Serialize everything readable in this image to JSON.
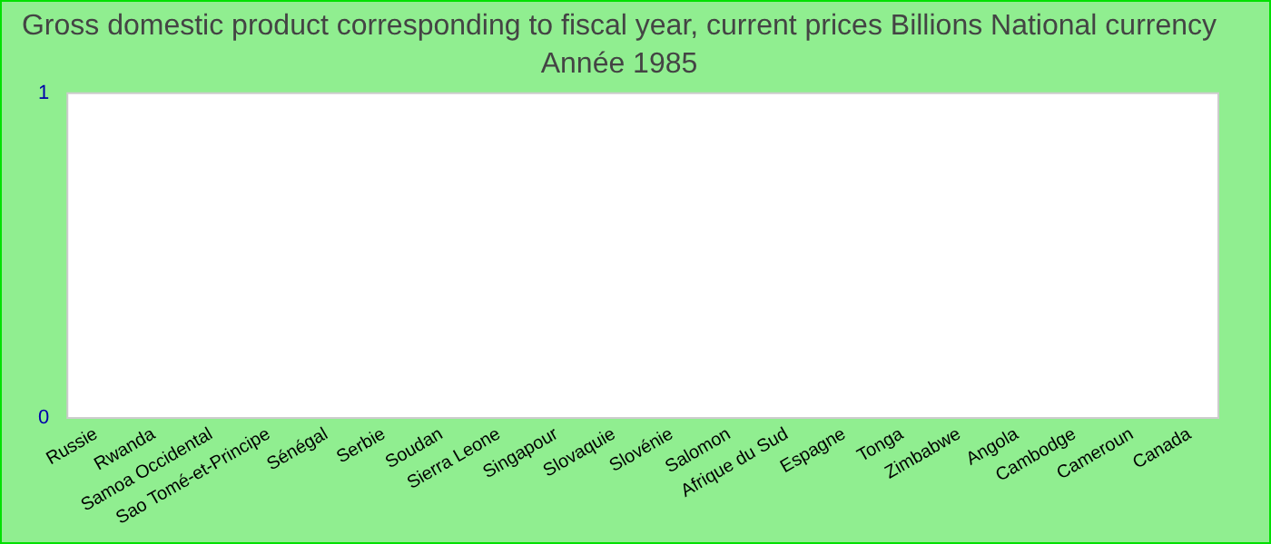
{
  "chart_data": {
    "type": "bar",
    "title": "Gross domestic product corresponding to fiscal year, current prices Billions National currency",
    "subtitle": "Année 1985",
    "categories": [
      "Russie",
      "Rwanda",
      "Samoa Occidental",
      "Sao Tomé-et-Principe",
      "Sénégal",
      "Serbie",
      "Soudan",
      "Sierra Leone",
      "Singapour",
      "Slovaquie",
      "Slovénie",
      "Salomon",
      "Afrique du Sud",
      "Espagne",
      "Tonga",
      "Zimbabwe",
      "Angola",
      "Cambodge",
      "Cameroun",
      "Canada"
    ],
    "values": [
      null,
      null,
      null,
      null,
      null,
      null,
      null,
      null,
      null,
      null,
      null,
      null,
      null,
      null,
      null,
      null,
      null,
      null,
      null,
      null
    ],
    "ylim": [
      0,
      1
    ],
    "yticks": [
      0,
      1
    ],
    "grid": false,
    "legend": false
  }
}
